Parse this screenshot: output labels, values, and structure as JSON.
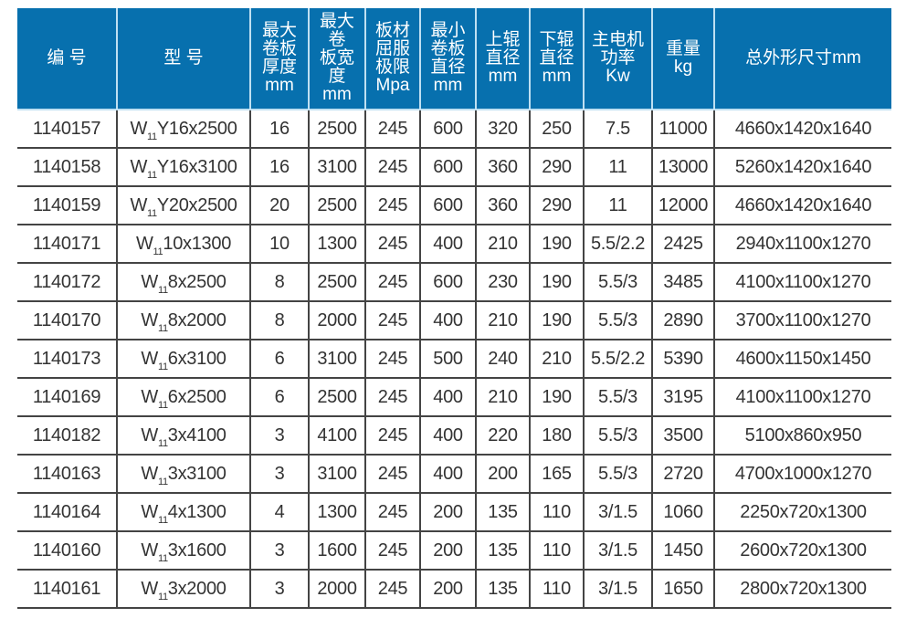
{
  "header_color": "#0770ae",
  "columns": [
    "编 号",
    "型 号",
    "最大\n卷板\n厚度\nmm",
    "最大\n卷\n板宽\n度\nmm",
    "板材\n屈服\n极限\nMpa",
    "最小\n卷板\n直径\nmm",
    "上辊\n直径\nmm",
    "下辊\n直径\nmm",
    "主电机\n功率\nKw",
    "重量\nkg",
    "总外形尺寸mm"
  ],
  "rows": [
    {
      "code": "1140157",
      "model_prefix": "W",
      "model_sub": "11",
      "model_rest": "Y16x2500",
      "thickness": "16",
      "width": "2500",
      "yield": "245",
      "min_dia": "600",
      "upper": "320",
      "lower": "250",
      "power": "7.5",
      "weight": "11000",
      "dims": "4660x1420x1640"
    },
    {
      "code": "1140158",
      "model_prefix": "W",
      "model_sub": "11",
      "model_rest": "Y16x3100",
      "thickness": "16",
      "width": "3100",
      "yield": "245",
      "min_dia": "600",
      "upper": "360",
      "lower": "290",
      "power": "11",
      "weight": "13000",
      "dims": "5260x1420x1640"
    },
    {
      "code": "1140159",
      "model_prefix": "W",
      "model_sub": "11",
      "model_rest": "Y20x2500",
      "thickness": "20",
      "width": "2500",
      "yield": "245",
      "min_dia": "600",
      "upper": "360",
      "lower": "290",
      "power": "11",
      "weight": "12000",
      "dims": "4660x1420x1640"
    },
    {
      "code": "1140171",
      "model_prefix": "W",
      "model_sub": "11",
      "model_rest": "10x1300",
      "thickness": "10",
      "width": "1300",
      "yield": "245",
      "min_dia": "400",
      "upper": "210",
      "lower": "190",
      "power": "5.5/2.2",
      "weight": "2425",
      "dims": "2940x1100x1270"
    },
    {
      "code": "1140172",
      "model_prefix": "W",
      "model_sub": "11",
      "model_rest": "8x2500",
      "thickness": "8",
      "width": "2500",
      "yield": "245",
      "min_dia": "600",
      "upper": "230",
      "lower": "190",
      "power": "5.5/3",
      "weight": "3485",
      "dims": "4100x1100x1270"
    },
    {
      "code": "1140170",
      "model_prefix": "W",
      "model_sub": "11",
      "model_rest": "8x2000",
      "thickness": "8",
      "width": "2000",
      "yield": "245",
      "min_dia": "400",
      "upper": "210",
      "lower": "190",
      "power": "5.5/3",
      "weight": "2890",
      "dims": "3700x1100x1270"
    },
    {
      "code": "1140173",
      "model_prefix": "W",
      "model_sub": "11",
      "model_rest": "6x3100",
      "thickness": "6",
      "width": "3100",
      "yield": "245",
      "min_dia": "500",
      "upper": "240",
      "lower": "210",
      "power": "5.5/2.2",
      "weight": "5390",
      "dims": "4600x1150x1450"
    },
    {
      "code": "1140169",
      "model_prefix": "W",
      "model_sub": "11",
      "model_rest": "6x2500",
      "thickness": "6",
      "width": "2500",
      "yield": "245",
      "min_dia": "400",
      "upper": "210",
      "lower": "190",
      "power": "5.5/3",
      "weight": "3195",
      "dims": "4100x1100x1270"
    },
    {
      "code": "1140182",
      "model_prefix": "W",
      "model_sub": "11",
      "model_rest": "3x4100",
      "thickness": "3",
      "width": "4100",
      "yield": "245",
      "min_dia": "400",
      "upper": "220",
      "lower": "180",
      "power": "5.5/3",
      "weight": "3500",
      "dims": "5100x860x950"
    },
    {
      "code": "1140163",
      "model_prefix": "W",
      "model_sub": "11",
      "model_rest": "3x3100",
      "thickness": "3",
      "width": "3100",
      "yield": "245",
      "min_dia": "400",
      "upper": "200",
      "lower": "165",
      "power": "5.5/3",
      "weight": "2720",
      "dims": "4700x1000x1270"
    },
    {
      "code": "1140164",
      "model_prefix": "W",
      "model_sub": "11",
      "model_rest": "4x1300",
      "thickness": "4",
      "width": "1300",
      "yield": "245",
      "min_dia": "200",
      "upper": "135",
      "lower": "110",
      "power": "3/1.5",
      "weight": "1060",
      "dims": "2250x720x1300"
    },
    {
      "code": "1140160",
      "model_prefix": "W",
      "model_sub": "11",
      "model_rest": "3x1600",
      "thickness": "3",
      "width": "1600",
      "yield": "245",
      "min_dia": "200",
      "upper": "135",
      "lower": "110",
      "power": "3/1.5",
      "weight": "1450",
      "dims": "2600x720x1300"
    },
    {
      "code": "1140161",
      "model_prefix": "W",
      "model_sub": "11",
      "model_rest": "3x2000",
      "thickness": "3",
      "width": "2000",
      "yield": "245",
      "min_dia": "200",
      "upper": "135",
      "lower": "110",
      "power": "3/1.5",
      "weight": "1650",
      "dims": "2800x720x1300"
    }
  ]
}
